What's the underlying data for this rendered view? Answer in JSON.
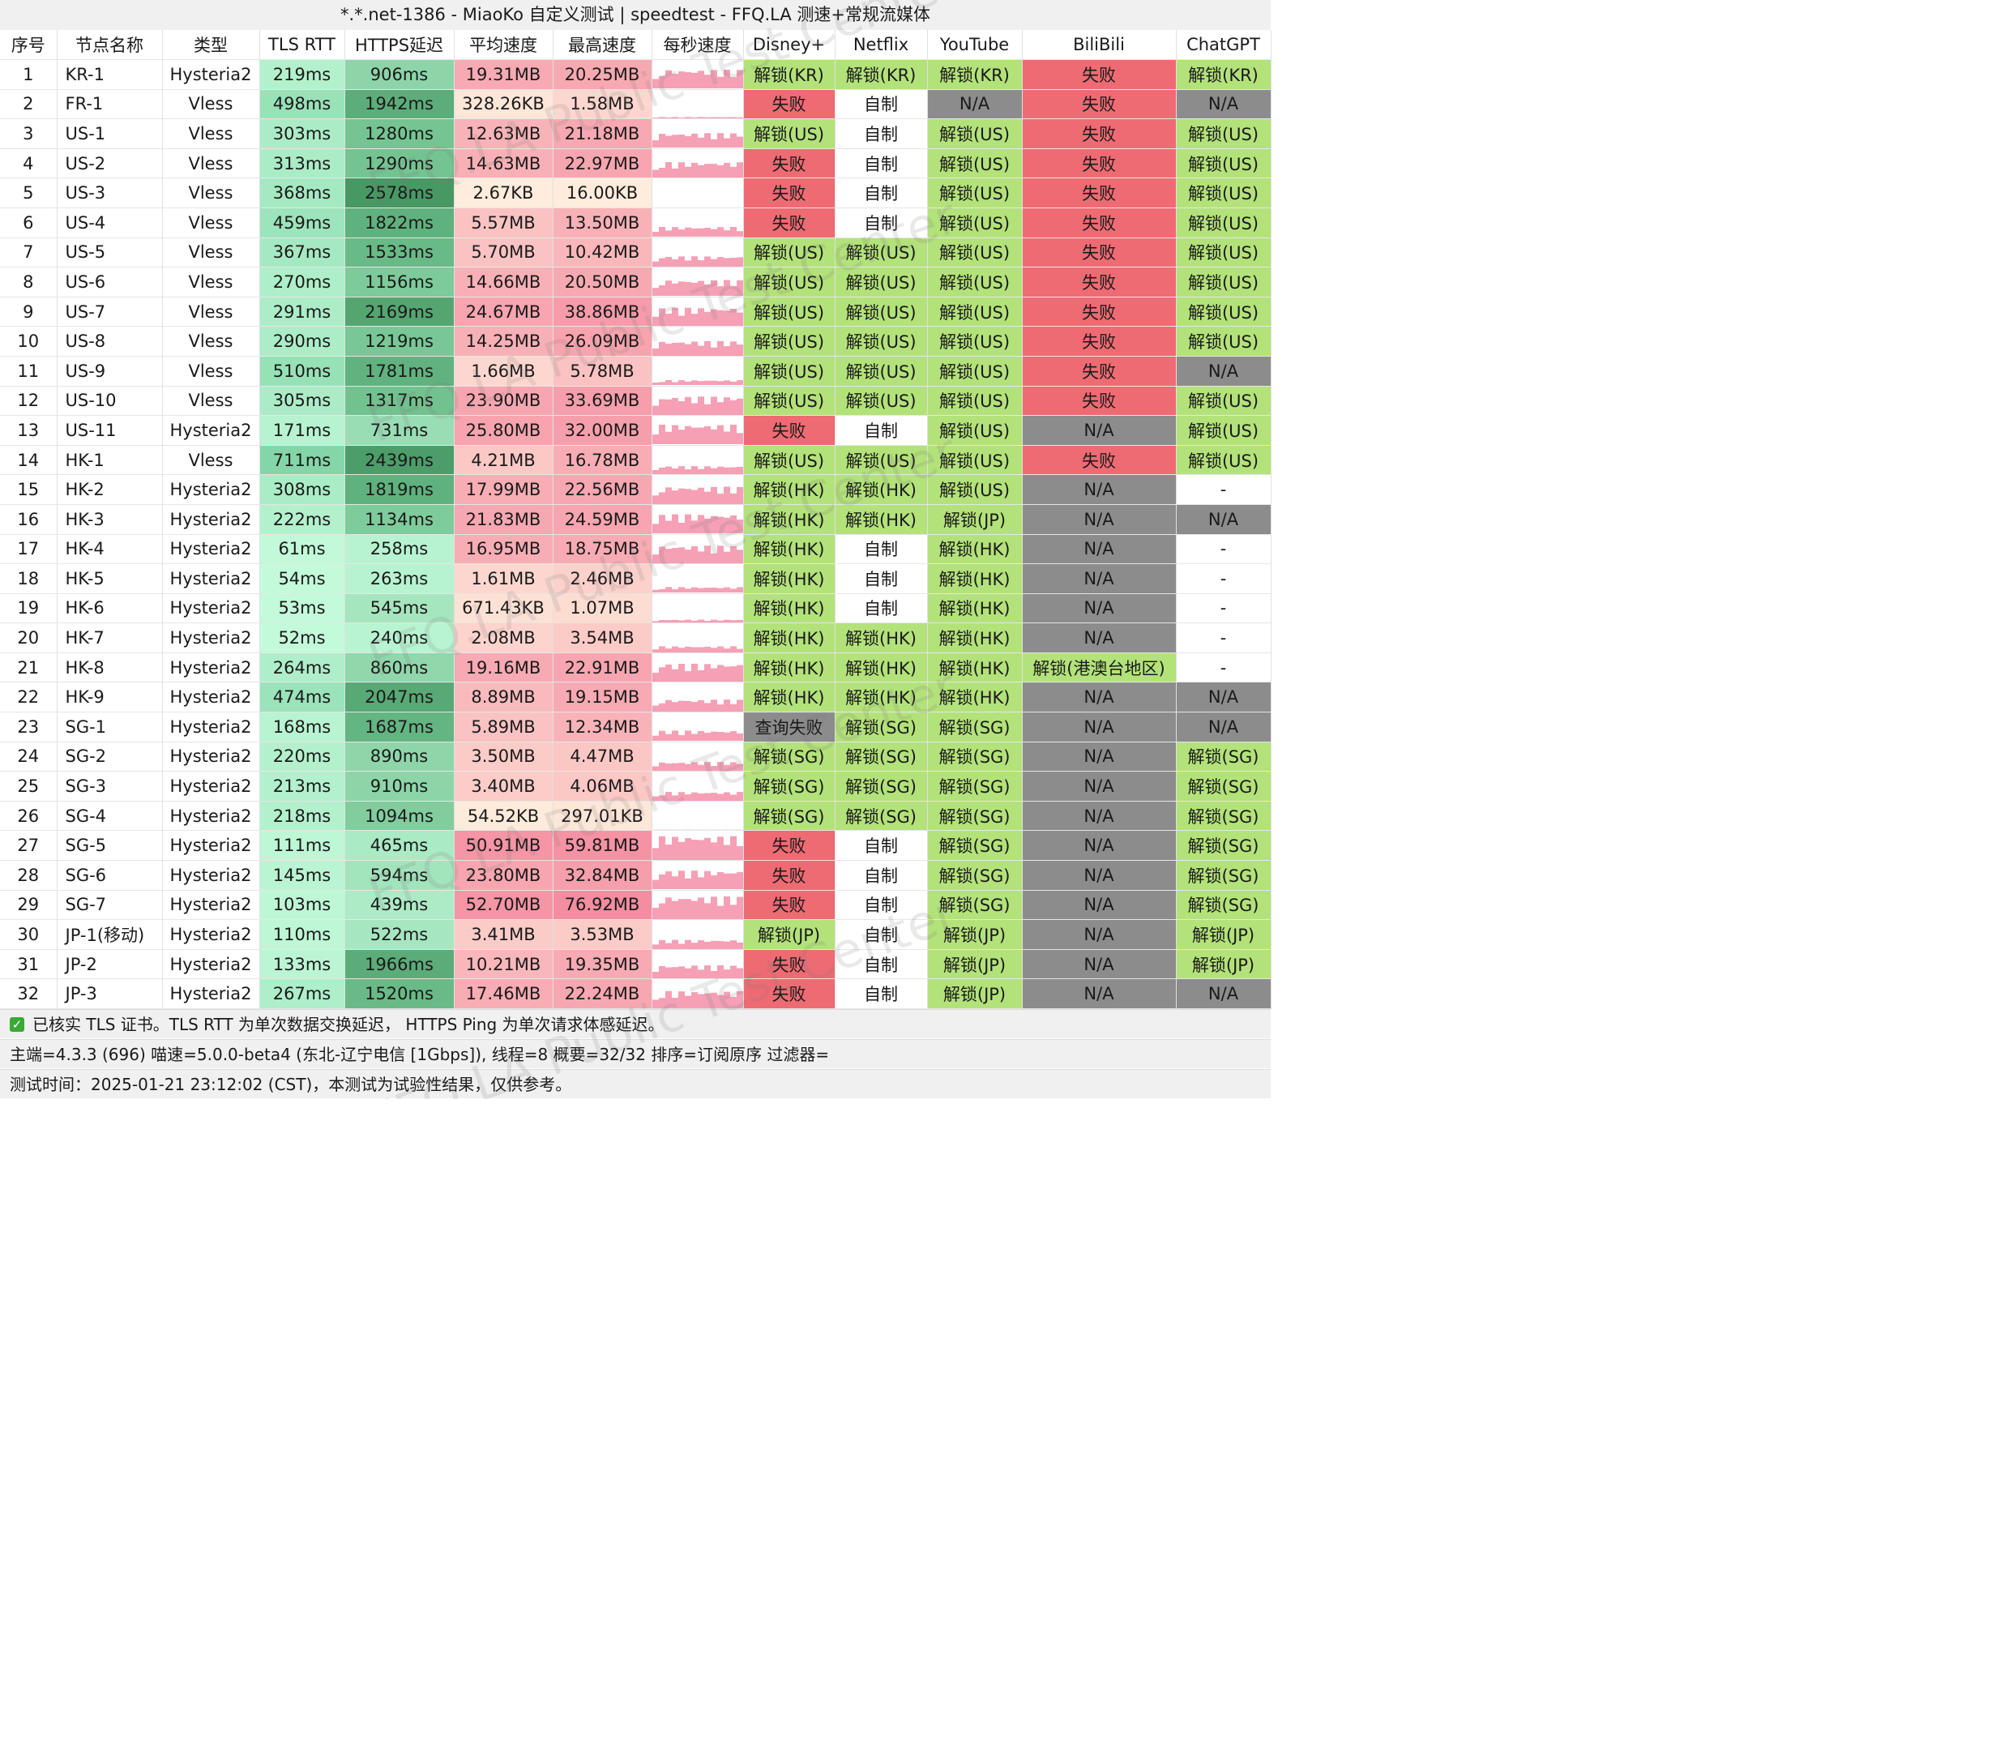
{
  "title": "*.*.net-1386 - MiaoKo 自定义测试 | speedtest - FFQ.LA 测速+常规流媒体",
  "columns": [
    "序号",
    "节点名称",
    "类型",
    "TLS RTT",
    "HTTPS延迟",
    "平均速度",
    "最高速度",
    "每秒速度",
    "Disney+",
    "Netflix",
    "YouTube",
    "BiliBili",
    "ChatGPT"
  ],
  "rows": [
    {
      "idx": "1",
      "name": "KR-1",
      "type": "Hysteria2",
      "tls": "219ms",
      "https": "906ms",
      "avg": "19.31MB",
      "max": "20.25MB",
      "disney": "解锁(KR)",
      "netflix": "解锁(KR)",
      "youtube": "解锁(KR)",
      "bili": "失败",
      "gpt": "解锁(KR)"
    },
    {
      "idx": "2",
      "name": "FR-1",
      "type": "Vless",
      "tls": "498ms",
      "https": "1942ms",
      "avg": "328.26KB",
      "max": "1.58MB",
      "disney": "失败",
      "netflix": "自制",
      "youtube": "N/A",
      "bili": "失败",
      "gpt": "N/A"
    },
    {
      "idx": "3",
      "name": "US-1",
      "type": "Vless",
      "tls": "303ms",
      "https": "1280ms",
      "avg": "12.63MB",
      "max": "21.18MB",
      "disney": "解锁(US)",
      "netflix": "自制",
      "youtube": "解锁(US)",
      "bili": "失败",
      "gpt": "解锁(US)"
    },
    {
      "idx": "4",
      "name": "US-2",
      "type": "Vless",
      "tls": "313ms",
      "https": "1290ms",
      "avg": "14.63MB",
      "max": "22.97MB",
      "disney": "失败",
      "netflix": "自制",
      "youtube": "解锁(US)",
      "bili": "失败",
      "gpt": "解锁(US)"
    },
    {
      "idx": "5",
      "name": "US-3",
      "type": "Vless",
      "tls": "368ms",
      "https": "2578ms",
      "avg": "2.67KB",
      "max": "16.00KB",
      "disney": "失败",
      "netflix": "自制",
      "youtube": "解锁(US)",
      "bili": "失败",
      "gpt": "解锁(US)"
    },
    {
      "idx": "6",
      "name": "US-4",
      "type": "Vless",
      "tls": "459ms",
      "https": "1822ms",
      "avg": "5.57MB",
      "max": "13.50MB",
      "disney": "失败",
      "netflix": "自制",
      "youtube": "解锁(US)",
      "bili": "失败",
      "gpt": "解锁(US)"
    },
    {
      "idx": "7",
      "name": "US-5",
      "type": "Vless",
      "tls": "367ms",
      "https": "1533ms",
      "avg": "5.70MB",
      "max": "10.42MB",
      "disney": "解锁(US)",
      "netflix": "解锁(US)",
      "youtube": "解锁(US)",
      "bili": "失败",
      "gpt": "解锁(US)"
    },
    {
      "idx": "8",
      "name": "US-6",
      "type": "Vless",
      "tls": "270ms",
      "https": "1156ms",
      "avg": "14.66MB",
      "max": "20.50MB",
      "disney": "解锁(US)",
      "netflix": "解锁(US)",
      "youtube": "解锁(US)",
      "bili": "失败",
      "gpt": "解锁(US)"
    },
    {
      "idx": "9",
      "name": "US-7",
      "type": "Vless",
      "tls": "291ms",
      "https": "2169ms",
      "avg": "24.67MB",
      "max": "38.86MB",
      "disney": "解锁(US)",
      "netflix": "解锁(US)",
      "youtube": "解锁(US)",
      "bili": "失败",
      "gpt": "解锁(US)"
    },
    {
      "idx": "10",
      "name": "US-8",
      "type": "Vless",
      "tls": "290ms",
      "https": "1219ms",
      "avg": "14.25MB",
      "max": "26.09MB",
      "disney": "解锁(US)",
      "netflix": "解锁(US)",
      "youtube": "解锁(US)",
      "bili": "失败",
      "gpt": "解锁(US)"
    },
    {
      "idx": "11",
      "name": "US-9",
      "type": "Vless",
      "tls": "510ms",
      "https": "1781ms",
      "avg": "1.66MB",
      "max": "5.78MB",
      "disney": "解锁(US)",
      "netflix": "解锁(US)",
      "youtube": "解锁(US)",
      "bili": "失败",
      "gpt": "N/A"
    },
    {
      "idx": "12",
      "name": "US-10",
      "type": "Vless",
      "tls": "305ms",
      "https": "1317ms",
      "avg": "23.90MB",
      "max": "33.69MB",
      "disney": "解锁(US)",
      "netflix": "解锁(US)",
      "youtube": "解锁(US)",
      "bili": "失败",
      "gpt": "解锁(US)"
    },
    {
      "idx": "13",
      "name": "US-11",
      "type": "Hysteria2",
      "tls": "171ms",
      "https": "731ms",
      "avg": "25.80MB",
      "max": "32.00MB",
      "disney": "失败",
      "netflix": "自制",
      "youtube": "解锁(US)",
      "bili": "N/A",
      "gpt": "解锁(US)"
    },
    {
      "idx": "14",
      "name": "HK-1",
      "type": "Vless",
      "tls": "711ms",
      "https": "2439ms",
      "avg": "4.21MB",
      "max": "16.78MB",
      "disney": "解锁(US)",
      "netflix": "解锁(US)",
      "youtube": "解锁(US)",
      "bili": "失败",
      "gpt": "解锁(US)"
    },
    {
      "idx": "15",
      "name": "HK-2",
      "type": "Hysteria2",
      "tls": "308ms",
      "https": "1819ms",
      "avg": "17.99MB",
      "max": "22.56MB",
      "disney": "解锁(HK)",
      "netflix": "解锁(HK)",
      "youtube": "解锁(US)",
      "bili": "N/A",
      "gpt": "-"
    },
    {
      "idx": "16",
      "name": "HK-3",
      "type": "Hysteria2",
      "tls": "222ms",
      "https": "1134ms",
      "avg": "21.83MB",
      "max": "24.59MB",
      "disney": "解锁(HK)",
      "netflix": "解锁(HK)",
      "youtube": "解锁(JP)",
      "bili": "N/A",
      "gpt": "N/A"
    },
    {
      "idx": "17",
      "name": "HK-4",
      "type": "Hysteria2",
      "tls": "61ms",
      "https": "258ms",
      "avg": "16.95MB",
      "max": "18.75MB",
      "disney": "解锁(HK)",
      "netflix": "自制",
      "youtube": "解锁(HK)",
      "bili": "N/A",
      "gpt": "-"
    },
    {
      "idx": "18",
      "name": "HK-5",
      "type": "Hysteria2",
      "tls": "54ms",
      "https": "263ms",
      "avg": "1.61MB",
      "max": "2.46MB",
      "disney": "解锁(HK)",
      "netflix": "自制",
      "youtube": "解锁(HK)",
      "bili": "N/A",
      "gpt": "-"
    },
    {
      "idx": "19",
      "name": "HK-6",
      "type": "Hysteria2",
      "tls": "53ms",
      "https": "545ms",
      "avg": "671.43KB",
      "max": "1.07MB",
      "disney": "解锁(HK)",
      "netflix": "自制",
      "youtube": "解锁(HK)",
      "bili": "N/A",
      "gpt": "-"
    },
    {
      "idx": "20",
      "name": "HK-7",
      "type": "Hysteria2",
      "tls": "52ms",
      "https": "240ms",
      "avg": "2.08MB",
      "max": "3.54MB",
      "disney": "解锁(HK)",
      "netflix": "解锁(HK)",
      "youtube": "解锁(HK)",
      "bili": "N/A",
      "gpt": "-"
    },
    {
      "idx": "21",
      "name": "HK-8",
      "type": "Hysteria2",
      "tls": "264ms",
      "https": "860ms",
      "avg": "19.16MB",
      "max": "22.91MB",
      "disney": "解锁(HK)",
      "netflix": "解锁(HK)",
      "youtube": "解锁(HK)",
      "bili": "解锁(港澳台地区)",
      "gpt": "-"
    },
    {
      "idx": "22",
      "name": "HK-9",
      "type": "Hysteria2",
      "tls": "474ms",
      "https": "2047ms",
      "avg": "8.89MB",
      "max": "19.15MB",
      "disney": "解锁(HK)",
      "netflix": "解锁(HK)",
      "youtube": "解锁(HK)",
      "bili": "N/A",
      "gpt": "N/A"
    },
    {
      "idx": "23",
      "name": "SG-1",
      "type": "Hysteria2",
      "tls": "168ms",
      "https": "1687ms",
      "avg": "5.89MB",
      "max": "12.34MB",
      "disney": "查询失败",
      "netflix": "解锁(SG)",
      "youtube": "解锁(SG)",
      "bili": "N/A",
      "gpt": "N/A"
    },
    {
      "idx": "24",
      "name": "SG-2",
      "type": "Hysteria2",
      "tls": "220ms",
      "https": "890ms",
      "avg": "3.50MB",
      "max": "4.47MB",
      "disney": "解锁(SG)",
      "netflix": "解锁(SG)",
      "youtube": "解锁(SG)",
      "bili": "N/A",
      "gpt": "解锁(SG)"
    },
    {
      "idx": "25",
      "name": "SG-3",
      "type": "Hysteria2",
      "tls": "213ms",
      "https": "910ms",
      "avg": "3.40MB",
      "max": "4.06MB",
      "disney": "解锁(SG)",
      "netflix": "解锁(SG)",
      "youtube": "解锁(SG)",
      "bili": "N/A",
      "gpt": "解锁(SG)"
    },
    {
      "idx": "26",
      "name": "SG-4",
      "type": "Hysteria2",
      "tls": "218ms",
      "https": "1094ms",
      "avg": "54.52KB",
      "max": "297.01KB",
      "disney": "解锁(SG)",
      "netflix": "解锁(SG)",
      "youtube": "解锁(SG)",
      "bili": "N/A",
      "gpt": "解锁(SG)"
    },
    {
      "idx": "27",
      "name": "SG-5",
      "type": "Hysteria2",
      "tls": "111ms",
      "https": "465ms",
      "avg": "50.91MB",
      "max": "59.81MB",
      "disney": "失败",
      "netflix": "自制",
      "youtube": "解锁(SG)",
      "bili": "N/A",
      "gpt": "解锁(SG)"
    },
    {
      "idx": "28",
      "name": "SG-6",
      "type": "Hysteria2",
      "tls": "145ms",
      "https": "594ms",
      "avg": "23.80MB",
      "max": "32.84MB",
      "disney": "失败",
      "netflix": "自制",
      "youtube": "解锁(SG)",
      "bili": "N/A",
      "gpt": "解锁(SG)"
    },
    {
      "idx": "29",
      "name": "SG-7",
      "type": "Hysteria2",
      "tls": "103ms",
      "https": "439ms",
      "avg": "52.70MB",
      "max": "76.92MB",
      "disney": "失败",
      "netflix": "自制",
      "youtube": "解锁(SG)",
      "bili": "N/A",
      "gpt": "解锁(SG)"
    },
    {
      "idx": "30",
      "name": "JP-1(移动)",
      "type": "Hysteria2",
      "tls": "110ms",
      "https": "522ms",
      "avg": "3.41MB",
      "max": "3.53MB",
      "disney": "解锁(JP)",
      "netflix": "自制",
      "youtube": "解锁(JP)",
      "bili": "N/A",
      "gpt": "解锁(JP)"
    },
    {
      "idx": "31",
      "name": "JP-2",
      "type": "Hysteria2",
      "tls": "133ms",
      "https": "1966ms",
      "avg": "10.21MB",
      "max": "19.35MB",
      "disney": "失败",
      "netflix": "自制",
      "youtube": "解锁(JP)",
      "bili": "N/A",
      "gpt": "解锁(JP)"
    },
    {
      "idx": "32",
      "name": "JP-3",
      "type": "Hysteria2",
      "tls": "267ms",
      "https": "1520ms",
      "avg": "17.46MB",
      "max": "22.24MB",
      "disney": "失败",
      "netflix": "自制",
      "youtube": "解锁(JP)",
      "bili": "N/A",
      "gpt": "N/A"
    }
  ],
  "status_colors": {
    "unlock": "#b3e27a",
    "fail": "#ef6b73",
    "na": "#8c8c8c",
    "query_fail": "#8c8c8c",
    "self": "#ffffff",
    "dash": "#ffffff"
  },
  "speed_bar_color": "#f5a0b5",
  "footer": {
    "line1": "已核实 TLS 证书。TLS RTT 为单次数据交换延迟， HTTPS Ping 为单次请求体感延迟。",
    "line2": "主端=4.3.3 (696) 喵速=5.0.0-beta4 (东北-辽宁电信 [1Gbps]), 线程=8 概要=32/32 排序=订阅原序 过滤器=",
    "line3": "测试时间：2025-01-21 23:12:02 (CST)，本测试为试验性结果，仅供参考。"
  },
  "watermark": "FFQ.LA Public Test Center"
}
